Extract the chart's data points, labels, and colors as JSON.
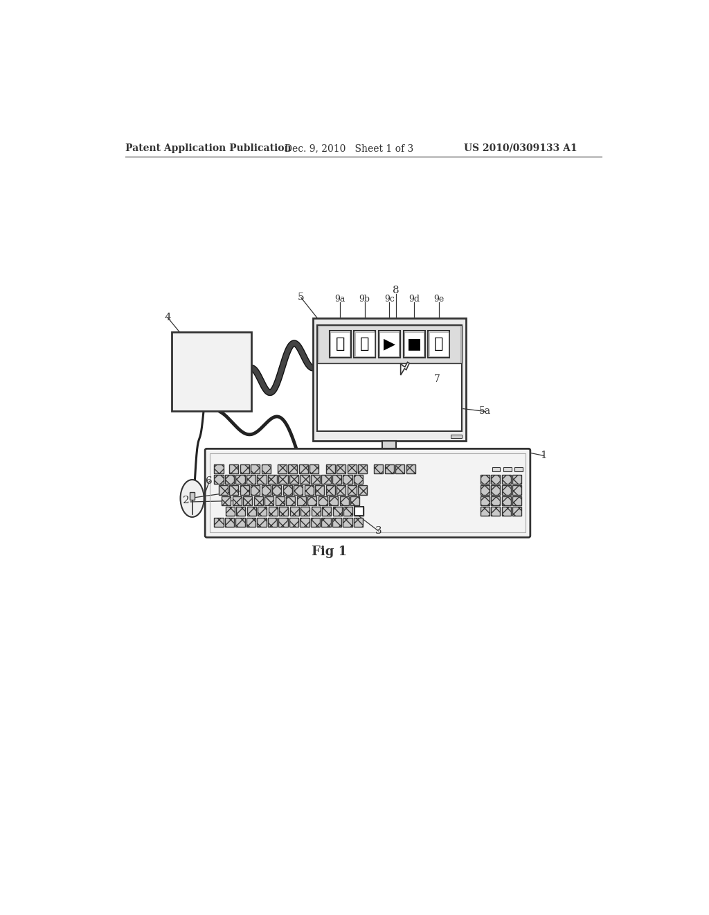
{
  "bg_color": "#ffffff",
  "header_left": "Patent Application Publication",
  "header_mid": "Dec. 9, 2010   Sheet 1 of 3",
  "header_right": "US 2010/0309133 A1",
  "fig_label": "Fig 1",
  "label_color": "#222222",
  "line_color": "#333333"
}
